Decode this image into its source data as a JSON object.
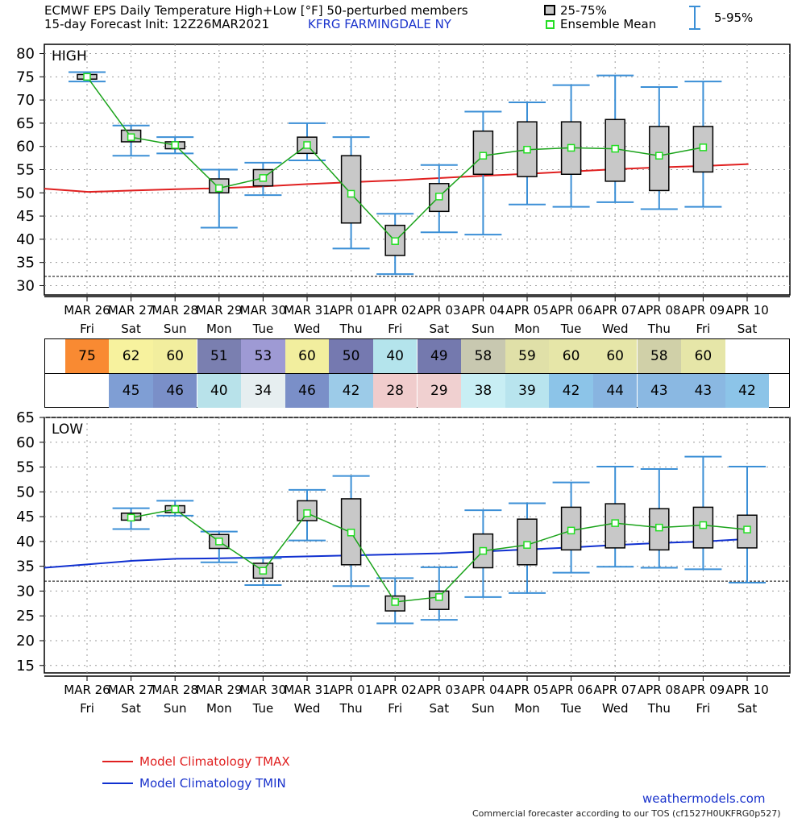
{
  "header": {
    "title": "ECMWF EPS Daily Temperature High+Low [°F]  50-perturbed members",
    "subtitle": "15-day Forecast Init: 12Z26MAR2021",
    "station": "KFRG  FARMINGDALE      NY",
    "legend_box": "25-75%",
    "legend_mean": "Ensemble Mean",
    "legend_whisker": "5-95%"
  },
  "footer": {
    "tmax_label": "Model Climatology TMAX",
    "tmin_label": "Model Climatology TMIN",
    "site": "weathermodels.com",
    "tos": "Commercial forecaster according to our TOS (cf1527H0UKFRG0p527)"
  },
  "colors": {
    "box_fill": "#c8c8c8",
    "whisker": "#3b8fd6",
    "mean": "#1aa31a",
    "mean_marker": "#22dd22",
    "clim_tmax": "#e02020",
    "clim_tmin": "#1030d0"
  },
  "dates": [
    "MAR 26",
    "MAR 27",
    "MAR 28",
    "MAR 29",
    "MAR 30",
    "MAR 31",
    "APR 01",
    "APR 02",
    "APR 03",
    "APR 04",
    "APR 05",
    "APR 06",
    "APR 07",
    "APR 08",
    "APR 09",
    "APR 10"
  ],
  "days": [
    "Fri",
    "Sat",
    "Sun",
    "Mon",
    "Tue",
    "Wed",
    "Thu",
    "Fri",
    "Sat",
    "Sun",
    "Mon",
    "Tue",
    "Wed",
    "Thu",
    "Fri",
    "Sat"
  ],
  "table": {
    "high": [
      {
        "v": "75",
        "c": "#f98a32"
      },
      {
        "v": "62",
        "c": "#f7f29e"
      },
      {
        "v": "60",
        "c": "#f2ee9e"
      },
      {
        "v": "51",
        "c": "#7a7fb0"
      },
      {
        "v": "53",
        "c": "#9e9ad4"
      },
      {
        "v": "60",
        "c": "#f2ee9e"
      },
      {
        "v": "50",
        "c": "#7579b0"
      },
      {
        "v": "40",
        "c": "#b4e4ec"
      },
      {
        "v": "49",
        "c": "#7479ae"
      },
      {
        "v": "58",
        "c": "#c8c8b0"
      },
      {
        "v": "59",
        "c": "#e0e0a8"
      },
      {
        "v": "60",
        "c": "#e6e6a8"
      },
      {
        "v": "60",
        "c": "#e6e6a8"
      },
      {
        "v": "58",
        "c": "#d0d0a8"
      },
      {
        "v": "60",
        "c": "#e6e6a8"
      },
      {
        "v": "",
        "c": ""
      }
    ],
    "low": [
      {
        "v": "",
        "c": ""
      },
      {
        "v": "45",
        "c": "#7f9ed4"
      },
      {
        "v": "46",
        "c": "#7a8fc8"
      },
      {
        "v": "40",
        "c": "#b8e2ea"
      },
      {
        "v": "34",
        "c": "#e6eef0"
      },
      {
        "v": "46",
        "c": "#7a8fc8"
      },
      {
        "v": "42",
        "c": "#9ccbe8"
      },
      {
        "v": "28",
        "c": "#f0cccc"
      },
      {
        "v": "29",
        "c": "#f0d0d0"
      },
      {
        "v": "38",
        "c": "#c8eef4"
      },
      {
        "v": "39",
        "c": "#b8e4ee"
      },
      {
        "v": "42",
        "c": "#8cc4e8"
      },
      {
        "v": "44",
        "c": "#88b4e0"
      },
      {
        "v": "43",
        "c": "#8ab8e2"
      },
      {
        "v": "43",
        "c": "#8ab8e2"
      },
      {
        "v": "42",
        "c": "#8cc4e8"
      }
    ]
  },
  "chart_data": [
    {
      "type": "box",
      "title": "HIGH",
      "ylim": [
        28,
        82
      ],
      "yticks": [
        30,
        35,
        40,
        45,
        50,
        55,
        60,
        65,
        70,
        75,
        80
      ],
      "freeze_line": 32,
      "categories": [
        "MAR 26",
        "MAR 27",
        "MAR 28",
        "MAR 29",
        "MAR 30",
        "MAR 31",
        "APR 01",
        "APR 02",
        "APR 03",
        "APR 04",
        "APR 05",
        "APR 06",
        "APR 07",
        "APR 08",
        "APR 09",
        "APR 10"
      ],
      "boxes": [
        {
          "p5": 74,
          "q1": 74.5,
          "q3": 75.5,
          "p95": 76,
          "mean": 75
        },
        {
          "p5": 58,
          "q1": 61,
          "q3": 63.5,
          "p95": 64.5,
          "mean": 62
        },
        {
          "p5": 58.5,
          "q1": 59.5,
          "q3": 61,
          "p95": 62,
          "mean": 60.3
        },
        {
          "p5": 42.5,
          "q1": 50,
          "q3": 53,
          "p95": 55,
          "mean": 51
        },
        {
          "p5": 49.5,
          "q1": 51.5,
          "q3": 55,
          "p95": 56.5,
          "mean": 53.2
        },
        {
          "p5": 57,
          "q1": 58.5,
          "q3": 62,
          "p95": 65,
          "mean": 60.3
        },
        {
          "p5": 38,
          "q1": 43.5,
          "q3": 58,
          "p95": 62,
          "mean": 49.8
        },
        {
          "p5": 32.5,
          "q1": 36.5,
          "q3": 43,
          "p95": 45.5,
          "mean": 39.6
        },
        {
          "p5": 41.5,
          "q1": 46,
          "q3": 52,
          "p95": 56,
          "mean": 49.2
        },
        {
          "p5": 41,
          "q1": 54,
          "q3": 63.3,
          "p95": 67.5,
          "mean": 58
        },
        {
          "p5": 47.5,
          "q1": 53.5,
          "q3": 65.3,
          "p95": 69.5,
          "mean": 59.3
        },
        {
          "p5": 47,
          "q1": 54,
          "q3": 65.3,
          "p95": 73.2,
          "mean": 59.7
        },
        {
          "p5": 48,
          "q1": 52.5,
          "q3": 65.8,
          "p95": 75.3,
          "mean": 59.5
        },
        {
          "p5": 46.5,
          "q1": 50.5,
          "q3": 64.3,
          "p95": 72.8,
          "mean": 58
        },
        {
          "p5": 47,
          "q1": 54.5,
          "q3": 64.3,
          "p95": 74,
          "mean": 59.8
        },
        null
      ],
      "climatology": {
        "name": "Model Climatology TMAX",
        "values": [
          50.9,
          50.2,
          50.5,
          50.8,
          51.0,
          51.4,
          51.9,
          52.3,
          52.7,
          53.2,
          53.7,
          54.1,
          54.6,
          55.1,
          55.5,
          55.8,
          56.2
        ]
      }
    },
    {
      "type": "box",
      "title": "LOW",
      "ylim": [
        13.5,
        65
      ],
      "yticks": [
        15,
        20,
        25,
        30,
        35,
        40,
        45,
        50,
        55,
        60,
        65
      ],
      "freeze_line": 32,
      "categories": [
        "MAR 26",
        "MAR 27",
        "MAR 28",
        "MAR 29",
        "MAR 30",
        "MAR 31",
        "APR 01",
        "APR 02",
        "APR 03",
        "APR 04",
        "APR 05",
        "APR 06",
        "APR 07",
        "APR 08",
        "APR 09",
        "APR 10"
      ],
      "boxes": [
        null,
        {
          "p5": 42.5,
          "q1": 44.3,
          "q3": 45.7,
          "p95": 46.7,
          "mean": 44.8
        },
        {
          "p5": 45.2,
          "q1": 45.8,
          "q3": 47.2,
          "p95": 48.2,
          "mean": 46.5
        },
        {
          "p5": 35.8,
          "q1": 38.6,
          "q3": 41.4,
          "p95": 42,
          "mean": 40
        },
        {
          "p5": 31.2,
          "q1": 32.6,
          "q3": 35.6,
          "p95": 36.6,
          "mean": 34.1
        },
        {
          "p5": 40.2,
          "q1": 44.2,
          "q3": 48.2,
          "p95": 50.4,
          "mean": 45.7
        },
        {
          "p5": 31,
          "q1": 35.3,
          "q3": 48.6,
          "p95": 53.2,
          "mean": 41.8
        },
        {
          "p5": 23.5,
          "q1": 26,
          "q3": 29,
          "p95": 32.6,
          "mean": 27.8
        },
        {
          "p5": 24.2,
          "q1": 26.3,
          "q3": 30,
          "p95": 34.8,
          "mean": 28.8
        },
        {
          "p5": 28.8,
          "q1": 34.7,
          "q3": 41.5,
          "p95": 46.3,
          "mean": 38.1
        },
        {
          "p5": 29.6,
          "q1": 35.3,
          "q3": 44.5,
          "p95": 47.7,
          "mean": 39.3
        },
        {
          "p5": 33.7,
          "q1": 38.3,
          "q3": 46.9,
          "p95": 51.9,
          "mean": 42.2
        },
        {
          "p5": 34.9,
          "q1": 38.7,
          "q3": 47.6,
          "p95": 55.1,
          "mean": 43.7
        },
        {
          "p5": 34.7,
          "q1": 38.3,
          "q3": 46.6,
          "p95": 54.6,
          "mean": 42.8
        },
        {
          "p5": 34.4,
          "q1": 38.7,
          "q3": 46.9,
          "p95": 57.1,
          "mean": 43.3
        },
        {
          "p5": 31.7,
          "q1": 38.7,
          "q3": 45.3,
          "p95": 55.1,
          "mean": 42.4
        }
      ],
      "climatology": {
        "name": "Model Climatology TMIN",
        "values": [
          34.7,
          35.4,
          36.1,
          36.5,
          36.6,
          36.8,
          37.0,
          37.2,
          37.4,
          37.6,
          38.0,
          38.4,
          38.8,
          39.3,
          39.7,
          40.0,
          40.5
        ]
      }
    }
  ]
}
